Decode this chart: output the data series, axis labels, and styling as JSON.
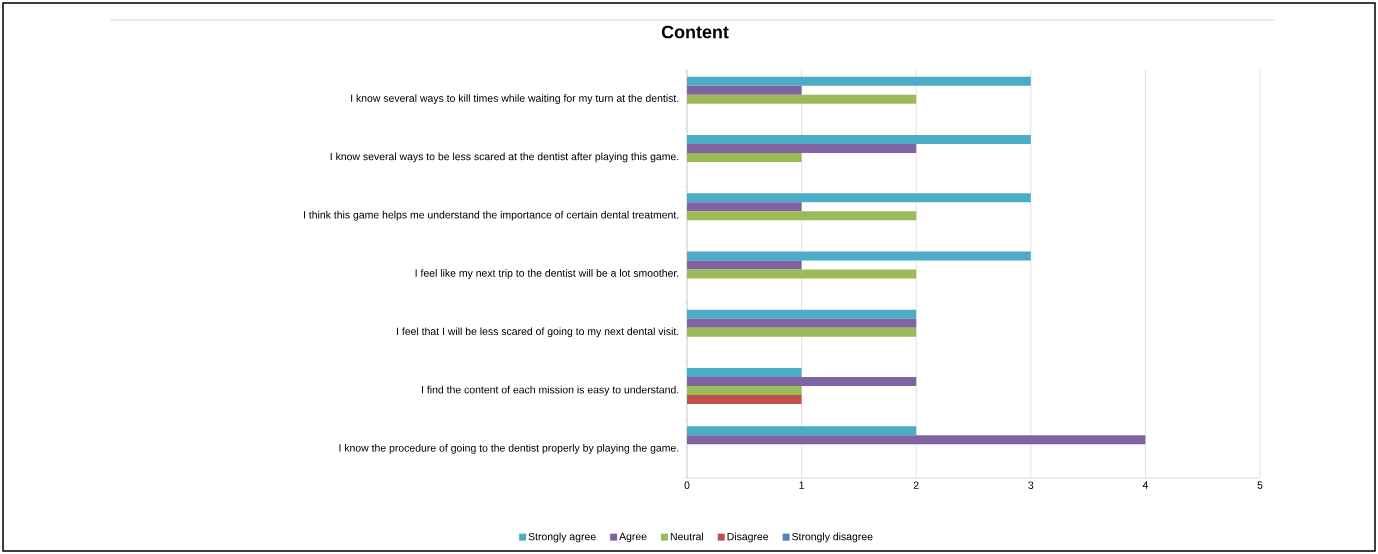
{
  "chart_data": {
    "type": "bar",
    "orientation": "horizontal",
    "title": "Content",
    "categories": [
      "I know several ways to kill times while waiting for my turn at the dentist.",
      "I know several ways to be less scared at the dentist after playing this game.",
      "I  think this game helps me understand the importance of certain dental treatment.",
      "I feel like my next trip to the dentist will be a lot smoother.",
      "I feel that I will be less scared of going to my next dental visit.",
      "I find the content of each mission is easy to understand.",
      "I know the procedure of going to the dentist properly by playing the game."
    ],
    "series": [
      {
        "name": "Strongly agree",
        "color": "#4bacc6",
        "values": [
          3,
          3,
          3,
          3,
          2,
          1,
          2
        ]
      },
      {
        "name": "Agree",
        "color": "#8064a2",
        "values": [
          1,
          2,
          1,
          1,
          2,
          2,
          4
        ]
      },
      {
        "name": "Neutral",
        "color": "#9bbb59",
        "values": [
          2,
          1,
          2,
          2,
          2,
          1,
          0
        ]
      },
      {
        "name": "Disagree",
        "color": "#c0504d",
        "values": [
          0,
          0,
          0,
          0,
          0,
          1,
          0
        ]
      },
      {
        "name": "Strongly disagree",
        "color": "#4f81bd",
        "values": [
          0,
          0,
          0,
          0,
          0,
          0,
          0
        ]
      }
    ],
    "xlim": [
      0,
      5
    ],
    "xticks": [
      0,
      1,
      2,
      3,
      4,
      5
    ],
    "grid": "x",
    "legend": "bottom"
  }
}
